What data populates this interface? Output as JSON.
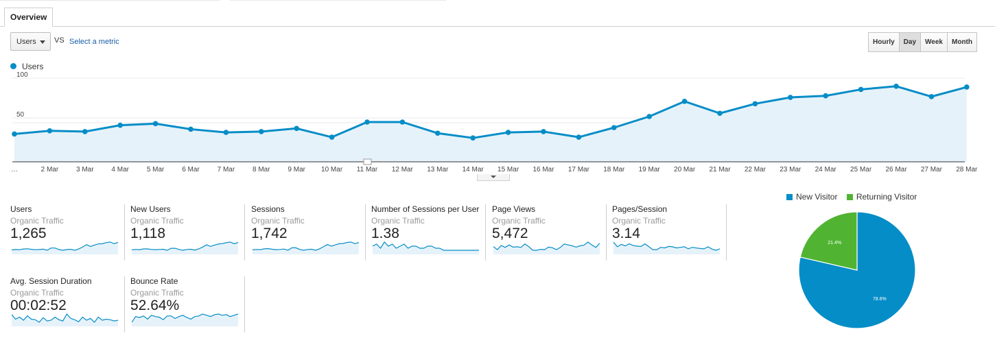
{
  "tabs": {
    "overview": "Overview"
  },
  "controls": {
    "metric_value": "Users",
    "vs_label": "VS",
    "select_metric": "Select a metric"
  },
  "granularity": [
    {
      "label": "Hourly",
      "active": false
    },
    {
      "label": "Day",
      "active": true
    },
    {
      "label": "Week",
      "active": false
    },
    {
      "label": "Month",
      "active": false
    }
  ],
  "colors": {
    "series_line": "#058dc7",
    "series_fill": "#e6f2fa",
    "grid": "#e8e8e8",
    "new_visitor": "#058dc7",
    "returning_visitor": "#50b432"
  },
  "chart_data": [
    {
      "type": "area",
      "series": [
        {
          "name": "Users",
          "values": [
            35,
            39,
            38,
            46,
            48,
            41,
            37,
            38,
            42,
            31,
            50,
            50,
            36,
            30,
            37,
            38,
            31,
            43,
            57,
            76,
            61,
            73,
            81,
            83,
            91,
            95,
            82,
            94
          ]
        }
      ],
      "categories": [
        "…",
        "2 Mar",
        "3 Mar",
        "4 Mar",
        "5 Mar",
        "6 Mar",
        "7 Mar",
        "8 Mar",
        "9 Mar",
        "10 Mar",
        "11 Mar",
        "12 Mar",
        "13 Mar",
        "14 Mar",
        "15 Mar",
        "16 Mar",
        "17 Mar",
        "18 Mar",
        "19 Mar",
        "20 Mar",
        "21 Mar",
        "22 Mar",
        "23 Mar",
        "24 Mar",
        "25 Mar",
        "26 Mar",
        "27 Mar",
        "28 Mar"
      ],
      "y_ticks": [
        100,
        50
      ],
      "ylim": [
        0,
        100
      ],
      "grid": true,
      "legend": "top-left"
    },
    {
      "type": "pie",
      "labels": [
        "New Visitor",
        "Returning Visitor"
      ],
      "values": [
        78.6,
        21.4
      ],
      "value_labels": [
        "78.6%",
        "21.4%"
      ],
      "legend": "top"
    }
  ],
  "metrics": [
    {
      "name": "Users",
      "segment": "Organic Traffic",
      "value": "1,265",
      "spark": [
        30,
        32,
        31,
        35,
        36,
        33,
        31,
        32,
        34,
        28,
        40,
        40,
        32,
        28,
        32,
        33,
        28,
        35,
        45,
        58,
        48,
        56,
        62,
        63,
        69,
        72,
        63,
        70
      ]
    },
    {
      "name": "New Users",
      "segment": "Organic Traffic",
      "value": "1,118",
      "spark": [
        28,
        30,
        29,
        33,
        33,
        30,
        29,
        30,
        31,
        26,
        36,
        36,
        30,
        26,
        30,
        31,
        27,
        33,
        42,
        53,
        45,
        52,
        57,
        59,
        64,
        67,
        58,
        65
      ]
    },
    {
      "name": "Sessions",
      "segment": "Organic Traffic",
      "value": "1,742",
      "spark": [
        40,
        42,
        41,
        45,
        46,
        43,
        41,
        42,
        44,
        38,
        50,
        50,
        42,
        38,
        42,
        43,
        38,
        45,
        55,
        66,
        58,
        64,
        70,
        71,
        76,
        78,
        70,
        76
      ]
    },
    {
      "name": "Number of Sessions per User",
      "segment": "Organic Traffic",
      "value": "1.38",
      "spark": [
        75,
        76,
        74,
        77,
        75,
        76,
        74,
        75,
        76,
        74,
        75,
        75,
        74,
        74,
        75,
        75,
        74,
        74,
        73,
        73,
        73,
        73,
        73,
        73,
        73,
        73,
        73,
        73
      ]
    },
    {
      "name": "Page Views",
      "segment": "Organic Traffic",
      "value": "5,472",
      "spark": [
        50,
        40,
        53,
        47,
        55,
        48,
        49,
        47,
        58,
        49,
        38,
        38,
        41,
        40,
        48,
        46,
        40,
        47,
        58,
        55,
        52,
        48,
        52,
        54,
        64,
        55,
        47,
        60
      ]
    },
    {
      "name": "Pages/Session",
      "segment": "Organic Traffic",
      "value": "3.14",
      "spark": [
        78,
        62,
        70,
        65,
        72,
        66,
        64,
        63,
        72,
        62,
        52,
        52,
        60,
        58,
        63,
        62,
        58,
        60,
        62,
        55,
        60,
        58,
        56,
        55,
        62,
        54,
        50,
        55
      ]
    },
    {
      "name": "Avg. Session Duration",
      "segment": "Organic Traffic",
      "value": "00:02:52",
      "spark": [
        70,
        52,
        60,
        48,
        65,
        52,
        50,
        40,
        58,
        45,
        48,
        60,
        50,
        45,
        72,
        55,
        50,
        42,
        60,
        48,
        55,
        40,
        60,
        48,
        52,
        50,
        45,
        48
      ]
    },
    {
      "name": "Bounce Rate",
      "segment": "Organic Traffic",
      "value": "52.64%",
      "spark": [
        40,
        58,
        55,
        60,
        50,
        62,
        58,
        56,
        48,
        60,
        60,
        52,
        58,
        62,
        55,
        50,
        58,
        60,
        66,
        62,
        58,
        64,
        66,
        62,
        64,
        58,
        62,
        66
      ]
    }
  ]
}
